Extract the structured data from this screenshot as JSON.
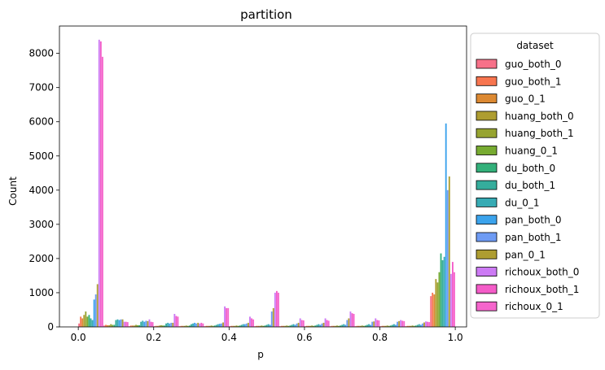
{
  "chart_data": {
    "type": "bar",
    "title": "partition",
    "xlabel": "p",
    "ylabel": "Count",
    "xlim": [
      -0.05,
      1.03
    ],
    "ylim": [
      0,
      8800
    ],
    "xticks": [
      0.0,
      0.2,
      0.4,
      0.6,
      0.8,
      1.0
    ],
    "xtick_labels": [
      "0.0",
      "0.2",
      "0.4",
      "0.6",
      "0.8",
      "1.0"
    ],
    "yticks": [
      0,
      1000,
      2000,
      3000,
      4000,
      5000,
      6000,
      7000,
      8000
    ],
    "ytick_labels": [
      "0",
      "1000",
      "2000",
      "3000",
      "4000",
      "5000",
      "6000",
      "7000",
      "8000"
    ],
    "grid": false,
    "legend": {
      "title": "dataset",
      "placement": "outside-right"
    },
    "bin_width": 0.0667,
    "bin_starts": [
      0.0,
      0.0667,
      0.1333,
      0.2,
      0.2667,
      0.3333,
      0.4,
      0.4667,
      0.5333,
      0.6,
      0.6667,
      0.7333,
      0.8,
      0.8667,
      0.9333
    ],
    "series": [
      {
        "name": "guo_both_0",
        "color": "#f77189",
        "values": [
          100,
          40,
          20,
          20,
          20,
          20,
          20,
          20,
          20,
          20,
          20,
          20,
          20,
          20,
          900
        ]
      },
      {
        "name": "guo_both_1",
        "color": "#f7754f",
        "values": [
          300,
          60,
          40,
          30,
          30,
          30,
          30,
          30,
          30,
          30,
          30,
          30,
          30,
          30,
          1000
        ]
      },
      {
        "name": "guo_0_1",
        "color": "#dc8932",
        "values": [
          250,
          50,
          40,
          30,
          30,
          30,
          30,
          30,
          30,
          30,
          30,
          30,
          30,
          30,
          950
        ]
      },
      {
        "name": "huang_both_0",
        "color": "#ae9d31",
        "values": [
          350,
          50,
          40,
          40,
          30,
          30,
          30,
          30,
          30,
          30,
          30,
          30,
          30,
          30,
          1400
        ]
      },
      {
        "name": "huang_both_1",
        "color": "#97a431",
        "values": [
          450,
          80,
          60,
          50,
          40,
          40,
          40,
          40,
          40,
          40,
          40,
          40,
          40,
          40,
          1300
        ]
      },
      {
        "name": "huang_0_1",
        "color": "#77ab31",
        "values": [
          300,
          60,
          50,
          40,
          30,
          30,
          30,
          30,
          30,
          30,
          30,
          30,
          30,
          30,
          1600
        ]
      },
      {
        "name": "du_both_0",
        "color": "#33b07a",
        "values": [
          350,
          60,
          50,
          40,
          40,
          40,
          40,
          40,
          40,
          40,
          40,
          40,
          40,
          40,
          2150
        ]
      },
      {
        "name": "du_both_1",
        "color": "#35ad9c",
        "values": [
          250,
          200,
          150,
          100,
          80,
          60,
          60,
          60,
          60,
          60,
          60,
          60,
          60,
          60,
          1950
        ]
      },
      {
        "name": "du_0_1",
        "color": "#37abb4",
        "values": [
          200,
          220,
          180,
          120,
          100,
          80,
          80,
          80,
          80,
          80,
          80,
          80,
          80,
          80,
          2050
        ]
      },
      {
        "name": "pan_both_0",
        "color": "#3ba3ec",
        "values": [
          800,
          200,
          150,
          100,
          120,
          90,
          80,
          60,
          60,
          60,
          60,
          60,
          60,
          60,
          5950
        ]
      },
      {
        "name": "pan_both_1",
        "color": "#6e9bf4",
        "values": [
          950,
          220,
          180,
          120,
          100,
          100,
          100,
          450,
          100,
          100,
          200,
          150,
          150,
          100,
          4000
        ]
      },
      {
        "name": "pan_0_1",
        "color": "#ae9d31",
        "values": [
          1250,
          220,
          170,
          120,
          120,
          130,
          120,
          550,
          120,
          120,
          250,
          160,
          170,
          130,
          4400
        ]
      },
      {
        "name": "richoux_both_0",
        "color": "#cc7af4",
        "values": [
          8400,
          150,
          220,
          380,
          100,
          600,
          300,
          1000,
          250,
          250,
          450,
          250,
          200,
          160,
          1550
        ]
      },
      {
        "name": "richoux_both_1",
        "color": "#f45cc8",
        "values": [
          8350,
          150,
          150,
          320,
          120,
          550,
          250,
          1050,
          200,
          200,
          400,
          200,
          180,
          150,
          1900
        ]
      },
      {
        "name": "richoux_0_1",
        "color": "#f565cc",
        "values": [
          7900,
          140,
          140,
          300,
          100,
          550,
          220,
          1000,
          190,
          180,
          380,
          190,
          170,
          140,
          1600
        ]
      }
    ]
  }
}
